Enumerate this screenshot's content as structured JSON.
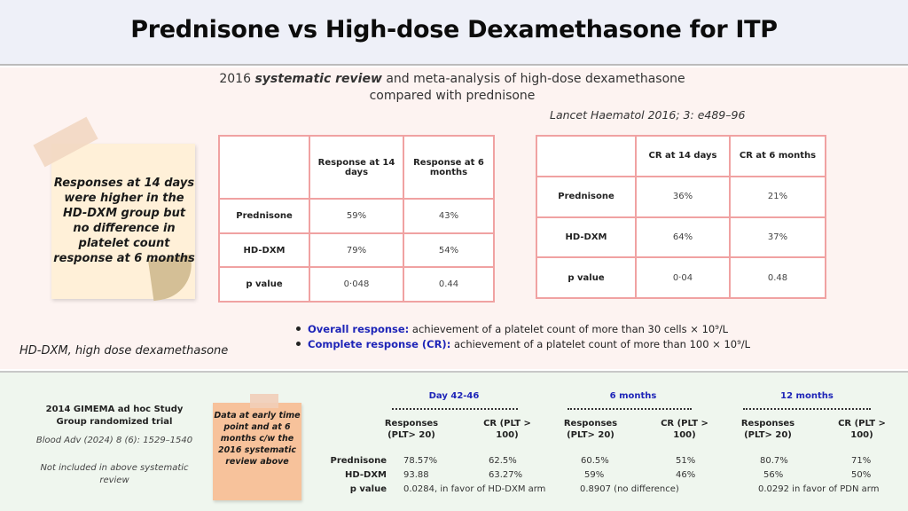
{
  "title": "Prednisone vs High-dose Dexamethasone for ITP",
  "intro": {
    "line1_pre": "2016 ",
    "line1_em": "systematic review",
    "line1_post": " and meta-analysis of high-dose dexamethasone",
    "line2": "compared with prednisone",
    "citation": "Lancet Haematol 2016; 3: e489–96"
  },
  "sticky_note": "Responses at 14 days were higher in the HD-DXM group but no difference in platelet count response at 6 months",
  "table1": {
    "headers": [
      "",
      "Response at 14 days",
      "Response at 6 months"
    ],
    "rows": [
      [
        "Prednisone",
        "59%",
        "43%"
      ],
      [
        "HD-DXM",
        "79%",
        "54%"
      ],
      [
        "p value",
        "0·048",
        "0.44"
      ]
    ]
  },
  "table2": {
    "headers": [
      "",
      "CR at 14 days",
      "CR at 6 months"
    ],
    "rows": [
      [
        "Prednisone",
        "36%",
        "21%"
      ],
      [
        "HD-DXM",
        "64%",
        "37%"
      ],
      [
        "p value",
        "0·04",
        "0.48"
      ]
    ]
  },
  "definitions": [
    {
      "term": "Overall response:",
      "text": " achievement of a platelet count of more than 30 cells × 10⁹/L"
    },
    {
      "term": "Complete response (CR):",
      "text": "  achievement of a platelet count of more than 100 × 10⁹/L"
    }
  ],
  "abbreviation": "HD-DXM, high dose dexamethasone",
  "study": {
    "name": "2014 GIMEMA ad hoc Study Group randomized trial",
    "citation": "Blood Adv (2024) 8 (6): 1529–1540",
    "note": "Not included in above systematic review"
  },
  "sticky_note2": "Data at early time point and at 6 months c/w the 2016 systematic review above",
  "results": {
    "periods": [
      "Day 42-46",
      "6 months",
      "12 months"
    ],
    "col_responses": "Responses (PLT> 20)",
    "col_cr": "CR (PLT > 100)",
    "row_labels": [
      "Prednisone",
      "HD-DXM",
      "p value"
    ],
    "prednisone": [
      "78.57%",
      "62.5%",
      "60.5%",
      "51%",
      "80.7%",
      "71%"
    ],
    "hd_dxm": [
      "93.88",
      "63.27%",
      "59%",
      "46%",
      "56%",
      "50%"
    ],
    "p_values": [
      "0.0284, in favor of HD-DXM arm",
      "0.8907 (no difference)",
      "0.0292 in favor of PDN arm"
    ]
  },
  "colors": {
    "table_border": "#f0a2a2",
    "accent_blue": "#1e25b8",
    "mid_bg": "#fdf3f1",
    "bottom_bg": "#eff6ee"
  }
}
